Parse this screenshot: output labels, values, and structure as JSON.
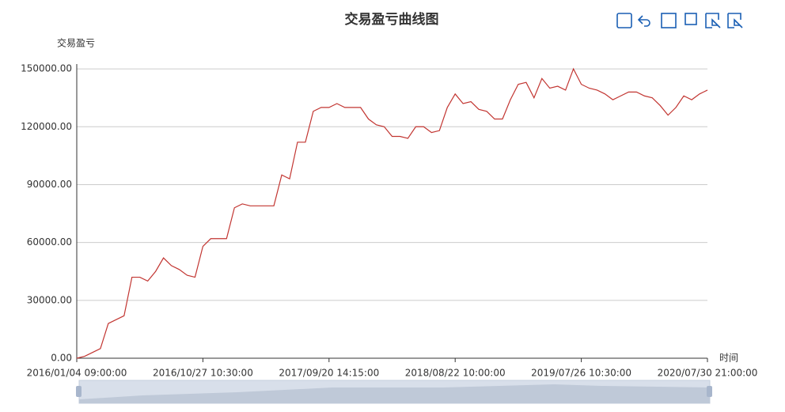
{
  "chart_data": {
    "type": "line",
    "title": "交易盈亏曲线图",
    "y_label": "交易盈亏",
    "x_label": "时间",
    "categories": [
      "2016/01/04 09:00:00",
      null,
      null,
      null,
      null,
      null,
      null,
      null,
      null,
      null,
      null,
      null,
      null,
      null,
      null,
      null,
      "2016/10/27 10:30:00",
      null,
      null,
      null,
      null,
      null,
      null,
      null,
      null,
      null,
      null,
      null,
      null,
      null,
      null,
      null,
      "2017/09/20 14:15:00",
      null,
      null,
      null,
      null,
      null,
      null,
      null,
      null,
      null,
      null,
      null,
      null,
      null,
      null,
      null,
      "2018/08/22 10:00:00",
      null,
      null,
      null,
      null,
      null,
      null,
      null,
      null,
      null,
      null,
      null,
      null,
      null,
      null,
      null,
      "2019/07/26 10:30:00",
      null,
      null,
      null,
      null,
      null,
      null,
      null,
      null,
      null,
      null,
      null,
      null,
      null,
      null,
      null,
      "2020/07/30 21:00:00"
    ],
    "series": [
      {
        "name": "交易盈亏",
        "color": "#c23531",
        "values": [
          0,
          1000,
          3000,
          5000,
          18000,
          20000,
          22000,
          42000,
          42000,
          40000,
          45000,
          52000,
          48000,
          46000,
          43000,
          42000,
          58000,
          62000,
          62000,
          62000,
          78000,
          80000,
          79000,
          79000,
          79000,
          79000,
          95000,
          93000,
          112000,
          112000,
          128000,
          130000,
          130000,
          132000,
          130000,
          130000,
          130000,
          124000,
          121000,
          120000,
          115000,
          115000,
          114000,
          120000,
          120000,
          117000,
          118000,
          130000,
          137000,
          132000,
          133000,
          129000,
          128000,
          124000,
          124000,
          134000,
          142000,
          143000,
          135000,
          145000,
          140000,
          141000,
          139000,
          150000,
          142000,
          140000,
          139000,
          137000,
          134000,
          136000,
          138000,
          138000,
          136000,
          135000,
          131000,
          126000,
          130000,
          136000,
          134000,
          137000,
          139000
        ]
      }
    ],
    "ylim": [
      0,
      152500
    ],
    "yticks": [
      {
        "value": 0,
        "label": "0.00"
      },
      {
        "value": 30000,
        "label": "30000.00"
      },
      {
        "value": 60000,
        "label": "60000.00"
      },
      {
        "value": 90000,
        "label": "90000.00"
      },
      {
        "value": 120000,
        "label": "120000.00"
      },
      {
        "value": 150000,
        "label": "150000.00"
      }
    ],
    "grid": true
  }
}
